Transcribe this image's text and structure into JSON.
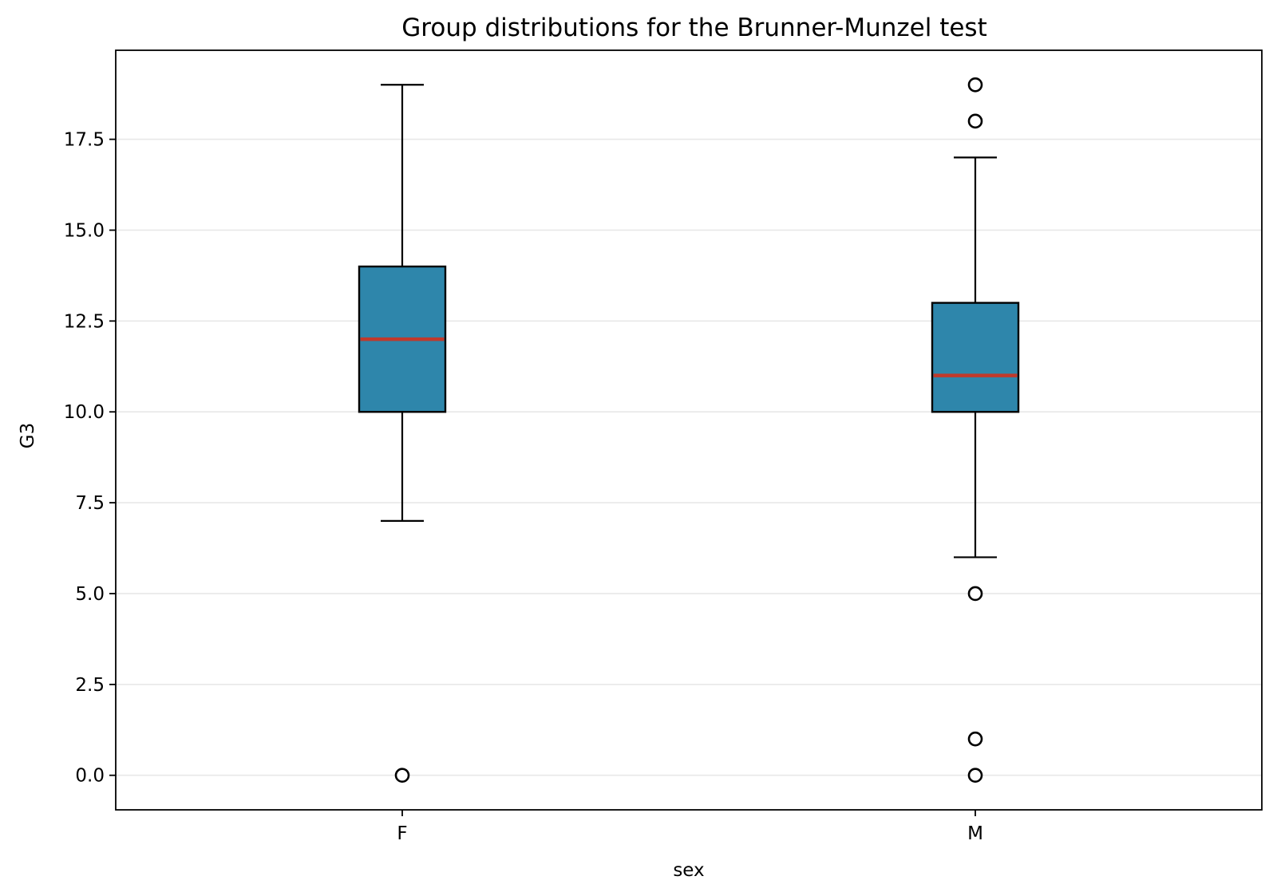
{
  "chart_data": {
    "type": "boxplot",
    "title": "Group distributions for the Brunner-Munzel test",
    "xlabel": "sex",
    "ylabel": "G3",
    "categories": [
      "F",
      "M"
    ],
    "ylim": [
      -0.95,
      19.95
    ],
    "yticks": [
      0.0,
      2.5,
      5.0,
      7.5,
      10.0,
      12.5,
      15.0,
      17.5
    ],
    "ytick_labels": [
      "0.0",
      "2.5",
      "5.0",
      "7.5",
      "10.0",
      "12.5",
      "15.0",
      "17.5"
    ],
    "grid": "horizontal",
    "legend": "none",
    "colors": {
      "box_fill": "#2e86ab",
      "median": "#c0392b",
      "outline": "#000000"
    },
    "boxes": [
      {
        "category": "F",
        "whisker_low": 7,
        "q1": 10,
        "median": 12,
        "q3": 14,
        "whisker_high": 19,
        "fliers": [
          0
        ]
      },
      {
        "category": "M",
        "whisker_low": 6,
        "q1": 10,
        "median": 11,
        "q3": 13,
        "whisker_high": 17,
        "fliers": [
          19,
          18,
          5,
          1,
          0
        ]
      }
    ]
  }
}
